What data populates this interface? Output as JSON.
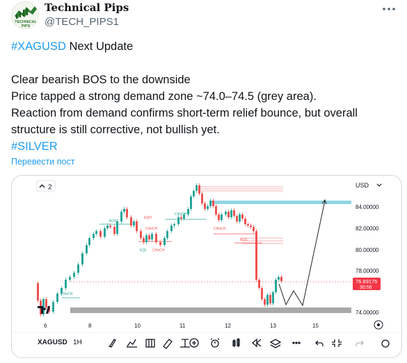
{
  "tweet": {
    "author_name": "Technical Pips",
    "author_handle": "@TECH_PIPS1",
    "avatar_text": [
      "TECHNICAL",
      "PIPS"
    ],
    "more_icon": "more-horizontal-icon",
    "lines": {
      "title_tag": "#XAGUSD",
      "title_rest": " Next Update",
      "line1": "Clear bearish BOS to the downside",
      "line2": "Price tapped a strong demand zone ~74.0–74.5 (grey area).",
      "line3": "Reaction from demand confirms short-term relief bounce, but overall",
      "line4": "structure is still corrective, not bullish yet.",
      "tag2": "#SILVER"
    },
    "translate_label": "Перевести пост"
  },
  "chart": {
    "interval_badge": "2",
    "currency": "USD",
    "symbol": "XAGUSD",
    "timeframe": "1H",
    "price_label": "76.89175",
    "price_countdown": "30:56",
    "price_ticks": [
      "84.00000",
      "82.00000",
      "80.00000",
      "78.00000",
      "74.00000"
    ],
    "time_ticks": [
      "6",
      "8",
      "10",
      "11",
      "12",
      "13",
      "15"
    ],
    "annotations": [
      "BOS",
      "EQH",
      "CHoCH",
      "CHoCH",
      "EQL",
      "CHoCH",
      "CHoCH",
      "BOS",
      "CHoCH"
    ],
    "colors": {
      "bull": "#26a69a",
      "bear": "#ef5350",
      "zone_blue": "#7fd3e0",
      "zone_grey": "#a6a6a6",
      "price_tag": "#f23645"
    },
    "toolbar_icons": [
      "brush-icon",
      "chart-indicator-icon",
      "bar-chart-icon",
      "ruler-icon",
      "text-tool-icon",
      "add-icon",
      "alarm-icon",
      "candles-icon",
      "replay-icon",
      "layers-icon",
      "more-icon",
      "undo-icon",
      "collapse-icon",
      "redo-icon",
      "settings-icon"
    ],
    "chart_data": {
      "type": "candlestick",
      "x_ticks": [
        "6",
        "8",
        "10",
        "11",
        "12",
        "13",
        "15"
      ],
      "y_ticks": [
        84,
        82,
        80,
        78,
        74
      ],
      "last_price": 76.89175,
      "zones": [
        {
          "name": "demand",
          "from": 74.0,
          "to": 74.5,
          "color": "grey"
        },
        {
          "name": "target",
          "from": 84.5,
          "to": 84.9,
          "color": "light-blue"
        }
      ]
    }
  }
}
